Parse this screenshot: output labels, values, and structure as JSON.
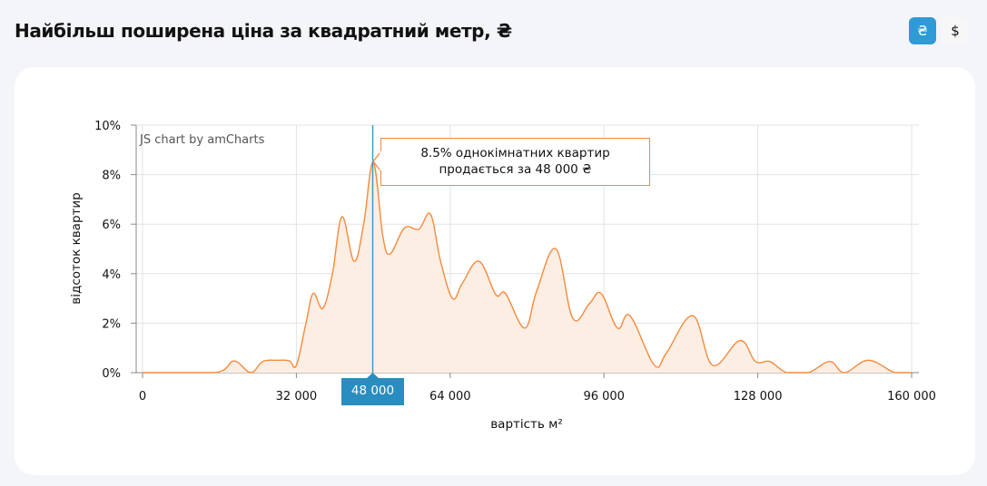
{
  "header": {
    "title": "Найбільш поширена ціна за квадратний метр, ₴",
    "currency_options": [
      {
        "symbol": "₴",
        "active": true
      },
      {
        "symbol": "$",
        "active": false
      }
    ]
  },
  "chart": {
    "credit": "JS chart by amCharts",
    "tooltip": {
      "line1": "8.5% однокімнатних квартир",
      "line2": "продається за 48 000 ₴"
    },
    "cursor_label": "48 000"
  },
  "colors": {
    "accent": "#2e9bd6",
    "cursor": "#2a8dbf",
    "series_line": "#f58a3c",
    "series_fill": "#fdeee3"
  },
  "chart_data": {
    "type": "area",
    "title": "Найбільш поширена ціна за квадратний метр, ₴",
    "xlabel": "вартість м²",
    "ylabel": "відсоток квартир",
    "xlim": [
      0,
      160000
    ],
    "ylim": [
      0,
      10
    ],
    "x_ticks": [
      "0",
      "32 000",
      "64 000",
      "96 000",
      "128 000",
      "160 000"
    ],
    "y_ticks": [
      "0%",
      "2%",
      "4%",
      "6%",
      "8%",
      "10%"
    ],
    "grid": true,
    "legend": null,
    "series": [
      {
        "name": "відсоток квартир",
        "x": [
          0,
          15000,
          19000,
          22500,
          25000,
          28000,
          30500,
          32000,
          34000,
          35500,
          37500,
          39500,
          41500,
          44000,
          46000,
          48000,
          50000,
          51500,
          54500,
          57500,
          59900,
          62000,
          64500,
          66500,
          70000,
          73500,
          75500,
          79500,
          82000,
          86000,
          89500,
          93000,
          95400,
          98800,
          101400,
          106500,
          109000,
          114500,
          118600,
          124300,
          127500,
          130500,
          134000,
          138500,
          143000,
          146000,
          151000,
          156500,
          160000
        ],
        "values": [
          0,
          0,
          0.47,
          0,
          0.45,
          0.5,
          0.48,
          0.3,
          2.0,
          3.2,
          2.6,
          4.0,
          6.3,
          4.5,
          6.0,
          8.5,
          5.5,
          4.8,
          5.85,
          5.8,
          6.4,
          4.5,
          3.0,
          3.6,
          4.5,
          3.15,
          3.2,
          1.8,
          3.3,
          5.0,
          2.2,
          2.8,
          3.2,
          1.8,
          2.3,
          0.3,
          0.8,
          2.3,
          0.3,
          1.3,
          0.45,
          0.45,
          0,
          0,
          0.45,
          0,
          0.5,
          0,
          0
        ]
      }
    ],
    "highlight": {
      "x": 48000,
      "y": 8.5,
      "label": "8.5% однокімнатних квартир продається за 48 000 ₴"
    }
  }
}
